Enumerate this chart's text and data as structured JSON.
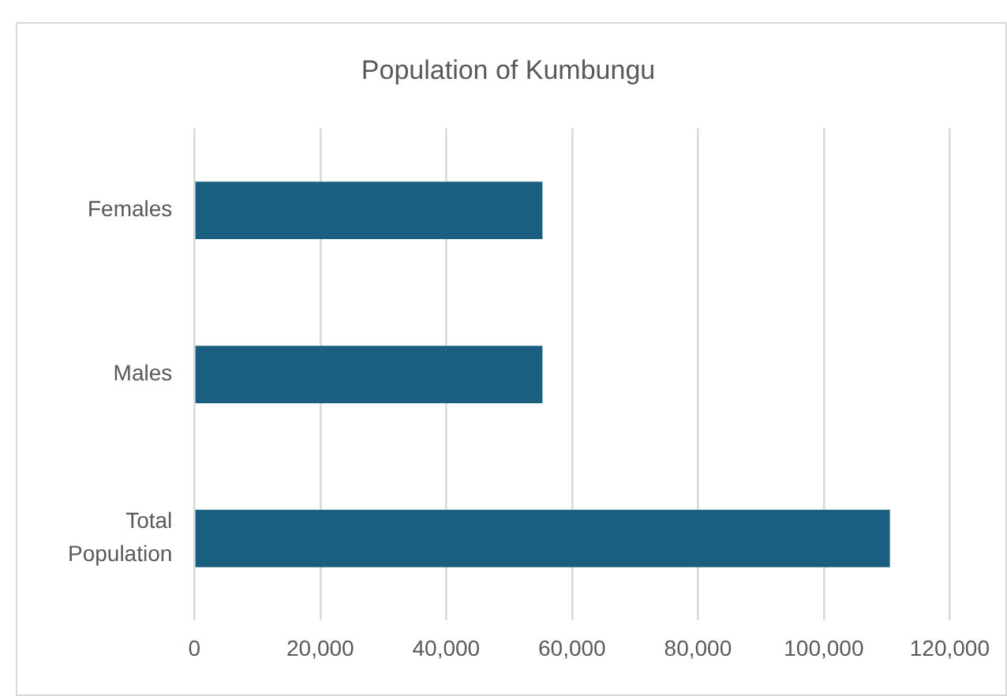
{
  "chart_data": {
    "type": "bar",
    "orientation": "horizontal",
    "title": "Population of Kumbungu",
    "categories": [
      "Females",
      "Males",
      "Total Population"
    ],
    "values": [
      55300,
      55300,
      110500
    ],
    "color": "#1a5f80",
    "xlim": [
      0,
      120000
    ],
    "xticks": [
      0,
      {
        "value": 20000,
        "label": "20,000"
      },
      {
        "value": 40000,
        "label": "40,000"
      },
      {
        "value": 60000,
        "label": "60,000"
      },
      {
        "value": 80000,
        "label": "80,000"
      },
      {
        "value": 100000,
        "label": "100,000"
      },
      {
        "value": 120000,
        "label": "120,000"
      }
    ],
    "grid": "x",
    "legend": false
  }
}
